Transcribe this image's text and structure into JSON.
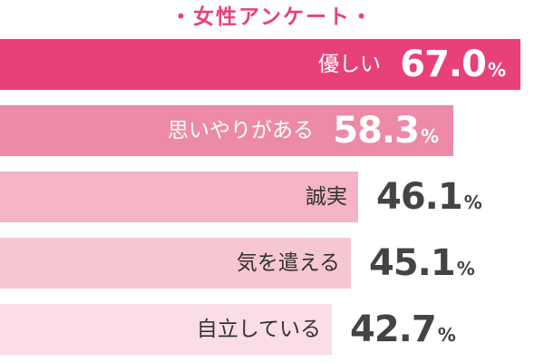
{
  "chart_data": {
    "type": "bar",
    "orientation": "horizontal",
    "title": "・女性アンケート・",
    "categories": [
      "優しい",
      "思いやりがある",
      "誠実",
      "気を遣える",
      "自立している"
    ],
    "values": [
      67.0,
      58.3,
      46.1,
      45.1,
      42.7
    ],
    "value_labels": [
      "67.0",
      "58.3",
      "46.1",
      "45.1",
      "42.7"
    ],
    "unit": "%",
    "xlim": [
      0,
      70
    ],
    "colors": {
      "title": "#e8417a",
      "bars": [
        "#e8417a",
        "#ec8aa8",
        "#f4b4c6",
        "#f6c6d3",
        "#fadde6"
      ],
      "category_text_on_dark": "#ffffff",
      "category_text_on_light": "#333333",
      "value_text_on_dark": "#ffffff",
      "value_text_on_light": "#444444"
    }
  }
}
